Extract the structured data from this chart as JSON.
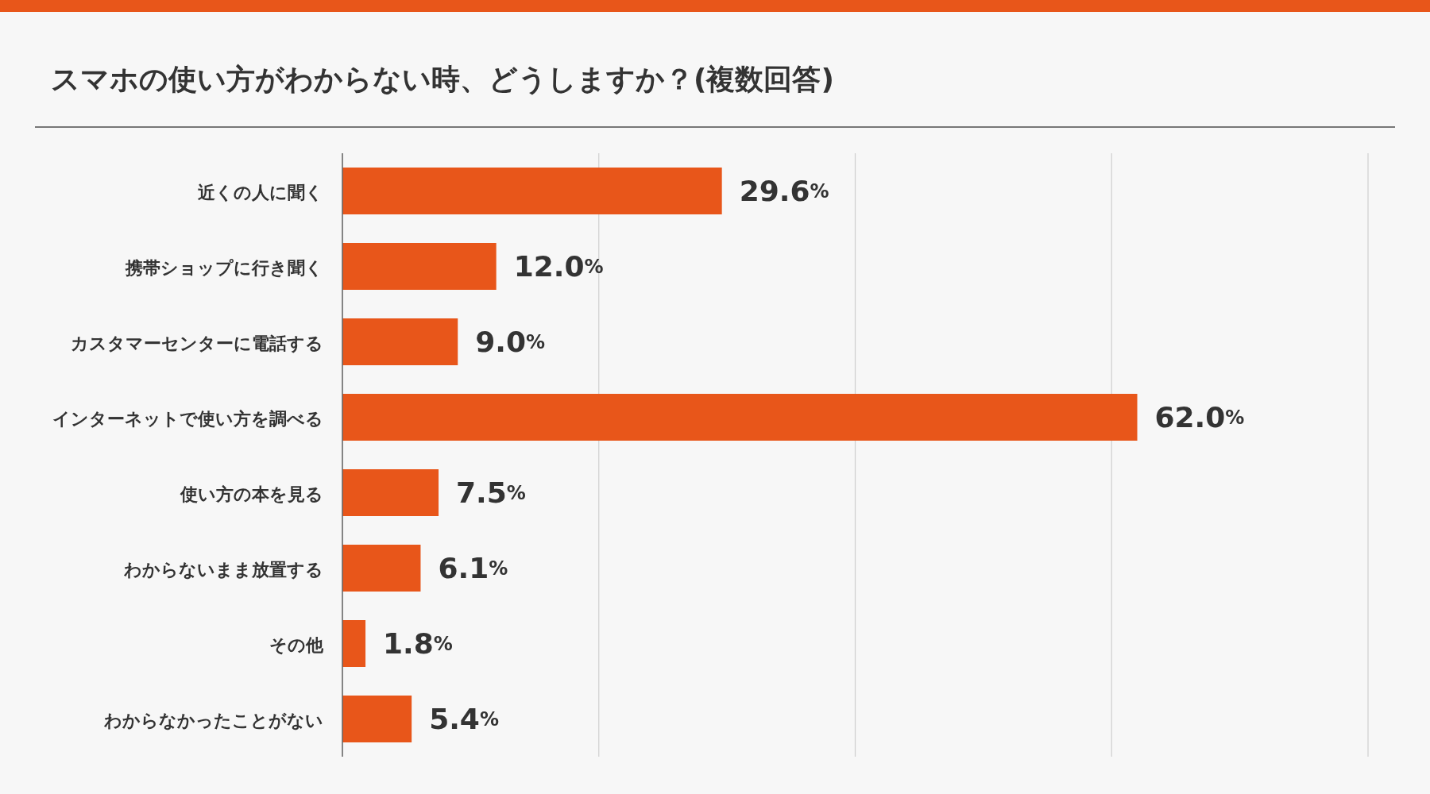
{
  "chart_data": {
    "type": "bar",
    "orientation": "horizontal",
    "title": "スマホの使い方がわからない時、どうしますか？(複数回答)",
    "categories": [
      "近くの人に聞く",
      "携帯ショップに行き聞く",
      "カスタマーセンターに電話する",
      "インターネットで使い方を調べる",
      "使い方の本を見る",
      "わからないまま放置する",
      "その他",
      "わからなかったことがない"
    ],
    "values": [
      29.6,
      12.0,
      9.0,
      62.0,
      7.5,
      6.1,
      1.8,
      5.4
    ],
    "value_labels": [
      "29.6%",
      "12.0%",
      "9.0%",
      "62.0%",
      "7.5%",
      "6.1%",
      "1.8%",
      "5.4%"
    ],
    "color": "#e8561a",
    "xlim": [
      0,
      80
    ],
    "xticks": [
      {
        "value": 20,
        "label": null
      },
      {
        "value": 40,
        "label": null
      },
      {
        "value": 60,
        "label": null
      },
      {
        "value": 80,
        "label": null
      }
    ],
    "grid": "x",
    "tick_labels": "y"
  }
}
